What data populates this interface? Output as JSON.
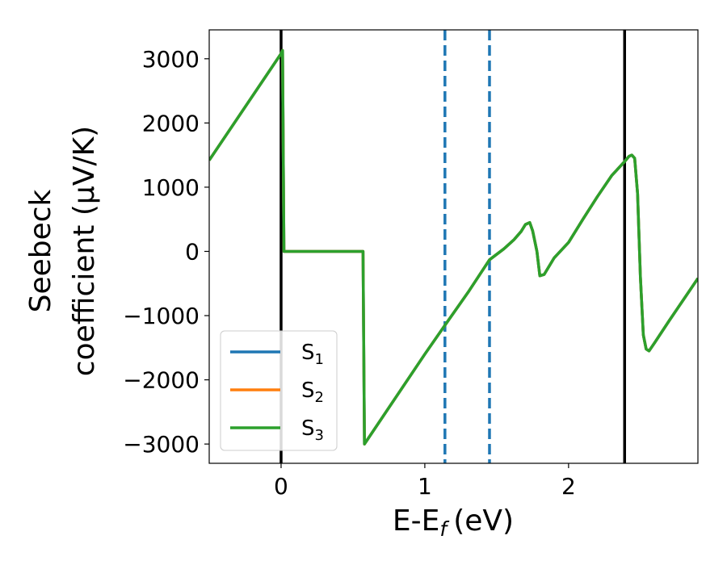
{
  "chart_data": {
    "type": "line",
    "xlabel": "E-E",
    "xlabel_sub": "f",
    "xlabel_unit": "(eV)",
    "ylabel_line1": "Seebeck",
    "ylabel_line2": "coefficient  (μV/K)",
    "xlim": [
      -0.5,
      2.9
    ],
    "ylim": [
      -3300,
      3450
    ],
    "xticks": [
      0,
      1,
      2
    ],
    "xtick_labels": [
      "0",
      "1",
      "2"
    ],
    "yticks": [
      -3000,
      -2000,
      -1000,
      0,
      1000,
      2000,
      3000
    ],
    "ytick_labels": [
      "−3000",
      "−2000",
      "−1000",
      "0",
      "1000",
      "2000",
      "3000"
    ],
    "grid": false,
    "legend_location": "lower-left",
    "vlines": [
      {
        "x": 0.0,
        "style": "solid",
        "color": "#000000"
      },
      {
        "x": 1.14,
        "style": "dashed",
        "color": "#1f77b4"
      },
      {
        "x": 1.45,
        "style": "dashed",
        "color": "#1f77b4"
      },
      {
        "x": 2.39,
        "style": "solid",
        "color": "#000000"
      }
    ],
    "series": [
      {
        "name": "S",
        "sub": "1",
        "color": "#1f77b4",
        "x": [
          -0.5,
          0.0,
          0.01,
          0.02,
          0.57,
          0.58,
          1.0,
          1.14,
          1.3,
          1.45,
          1.55,
          1.62,
          1.67,
          1.7,
          1.73,
          1.75,
          1.78,
          1.8,
          1.83,
          1.9,
          2.0,
          2.1,
          2.2,
          2.3,
          2.39,
          2.42,
          2.44,
          2.46,
          2.48,
          2.5,
          2.52,
          2.54,
          2.56,
          2.6,
          2.7,
          2.8,
          2.9
        ],
        "y": [
          1420,
          3080,
          3130,
          0,
          0,
          -3000,
          -1600,
          -1150,
          -640,
          -130,
          40,
          180,
          310,
          420,
          450,
          320,
          0,
          -380,
          -360,
          -100,
          140,
          500,
          850,
          1180,
          1400,
          1480,
          1500,
          1450,
          900,
          -400,
          -1300,
          -1520,
          -1550,
          -1420,
          -1080,
          -750,
          -420
        ]
      },
      {
        "name": "S",
        "sub": "2",
        "color": "#ff7f0e",
        "x": [
          -0.5,
          0.0,
          0.01,
          0.02,
          0.57,
          0.58,
          1.0,
          1.14,
          1.3,
          1.45,
          1.55,
          1.62,
          1.67,
          1.7,
          1.73,
          1.75,
          1.78,
          1.8,
          1.83,
          1.9,
          2.0,
          2.1,
          2.2,
          2.3,
          2.39,
          2.42,
          2.44,
          2.46,
          2.48,
          2.5,
          2.52,
          2.54,
          2.56,
          2.6,
          2.7,
          2.8,
          2.9
        ],
        "y": [
          1420,
          3080,
          3130,
          0,
          0,
          -3000,
          -1600,
          -1150,
          -640,
          -130,
          40,
          180,
          310,
          420,
          450,
          320,
          0,
          -380,
          -360,
          -100,
          140,
          500,
          850,
          1180,
          1400,
          1480,
          1500,
          1450,
          900,
          -400,
          -1300,
          -1520,
          -1550,
          -1420,
          -1080,
          -750,
          -420
        ]
      },
      {
        "name": "S",
        "sub": "3",
        "color": "#2ca02c",
        "x": [
          -0.5,
          0.0,
          0.01,
          0.02,
          0.57,
          0.58,
          1.0,
          1.14,
          1.3,
          1.45,
          1.55,
          1.62,
          1.67,
          1.7,
          1.73,
          1.75,
          1.78,
          1.8,
          1.83,
          1.9,
          2.0,
          2.1,
          2.2,
          2.3,
          2.39,
          2.42,
          2.44,
          2.46,
          2.48,
          2.5,
          2.52,
          2.54,
          2.56,
          2.6,
          2.7,
          2.8,
          2.9
        ],
        "y": [
          1420,
          3080,
          3130,
          0,
          0,
          -3000,
          -1600,
          -1150,
          -640,
          -130,
          40,
          180,
          310,
          420,
          450,
          320,
          0,
          -380,
          -360,
          -100,
          140,
          500,
          850,
          1180,
          1400,
          1480,
          1500,
          1450,
          900,
          -400,
          -1300,
          -1520,
          -1550,
          -1420,
          -1080,
          -750,
          -420
        ]
      }
    ]
  }
}
